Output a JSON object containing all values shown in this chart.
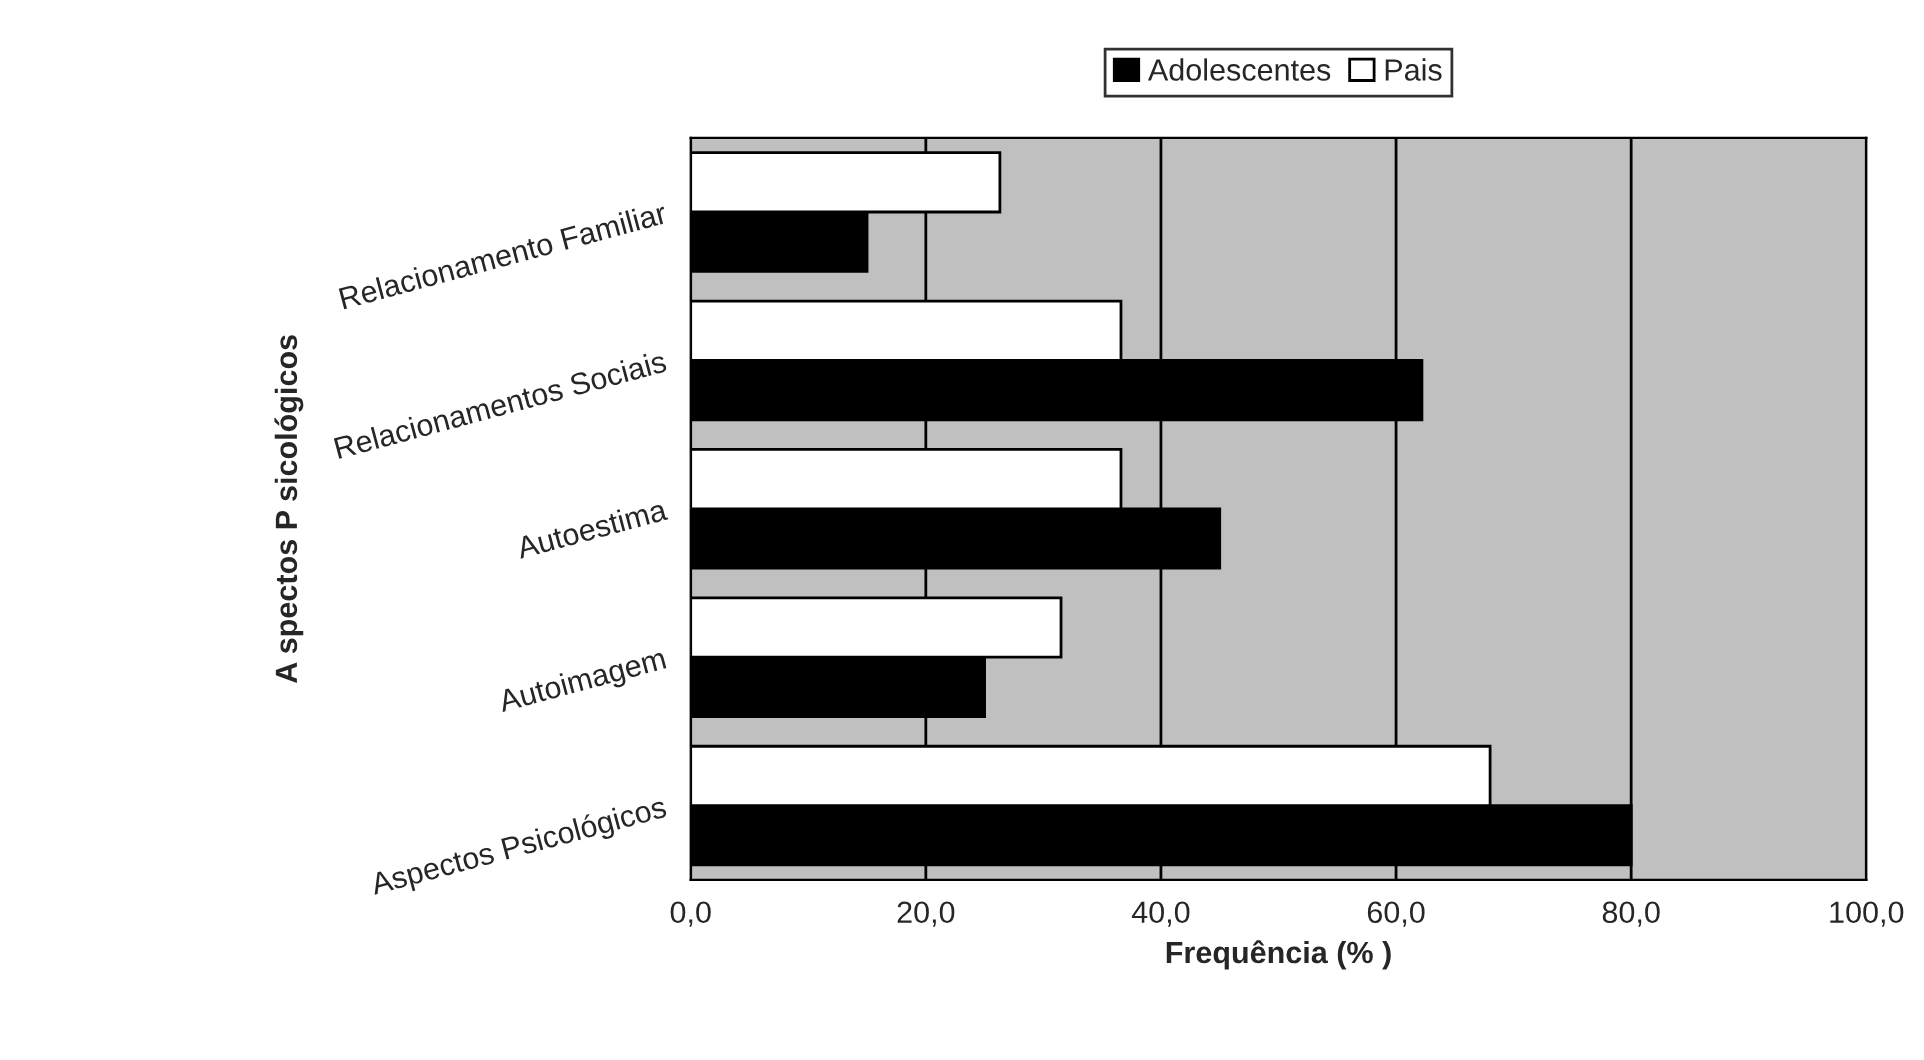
{
  "chart_data": {
    "type": "bar",
    "orientation": "horizontal",
    "xlabel": "Frequência (% )",
    "ylabel": "A spectos P sicológicos",
    "categories": [
      "Relacionamento Familiar",
      "Relacionamentos Sociais",
      "Autoestima",
      "Autoimagem",
      "Aspectos Psicológicos"
    ],
    "series": [
      {
        "name": "Adolescentes",
        "color": "#000000",
        "values": [
          15,
          62.2,
          45,
          25,
          80
        ]
      },
      {
        "name": "Pais",
        "color": "#ffffff",
        "values": [
          26.3,
          36.6,
          36.6,
          31.5,
          68
        ]
      }
    ],
    "xlim": [
      0,
      100
    ],
    "xticks": [
      {
        "value": 0,
        "label": "0,0"
      },
      {
        "value": 20,
        "label": "20,0"
      },
      {
        "value": 40,
        "label": "40,0"
      },
      {
        "value": 60,
        "label": "60,0"
      },
      {
        "value": 80,
        "label": "80,0"
      },
      {
        "value": 100,
        "label": "100,0"
      }
    ],
    "grid": "x",
    "legend": "top"
  }
}
